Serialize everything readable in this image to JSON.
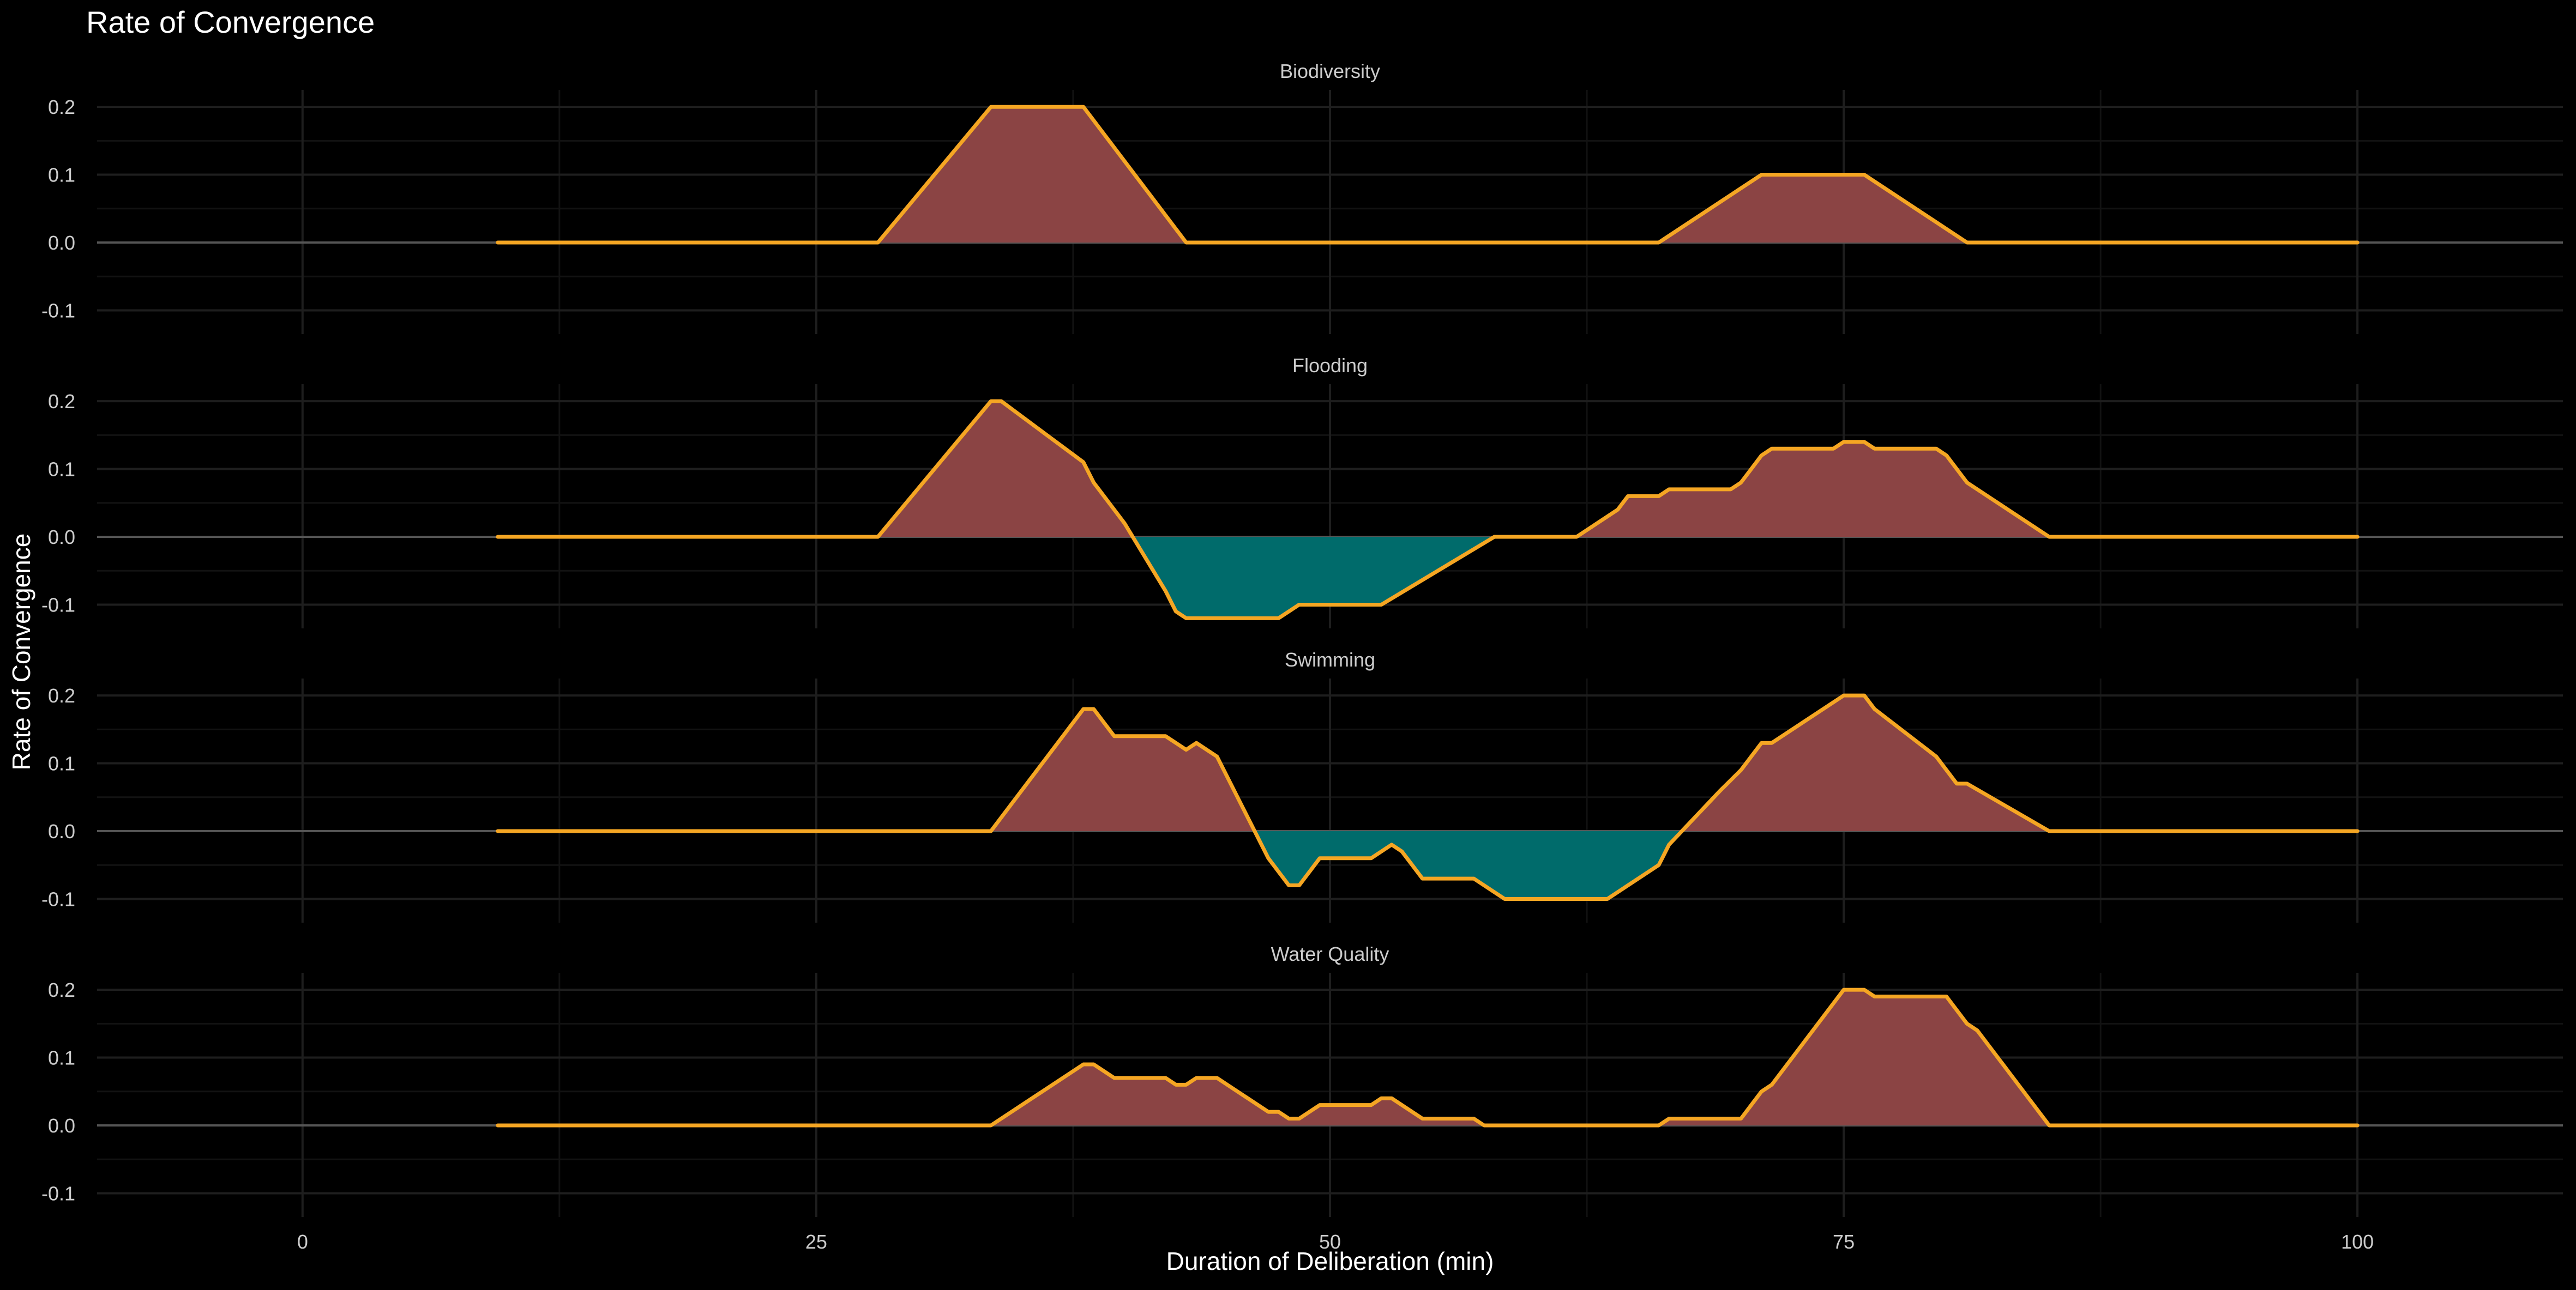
{
  "chart_data": {
    "type": "area",
    "title": "Rate of Convergence",
    "xlabel": "Duration of Deliberation (min)",
    "ylabel": "Rate of Convergence",
    "xlim": [
      -10,
      110
    ],
    "ylim": [
      -0.135,
      0.225
    ],
    "x_ticks": [
      0,
      25,
      50,
      75,
      100
    ],
    "y_ticks": [
      -0.1,
      0.0,
      0.1,
      0.2
    ],
    "grid": true,
    "legend": "none",
    "colors": {
      "background": "#000000",
      "line": "#F5A623",
      "positive_fill": "#8B4444",
      "negative_fill": "#006B6B",
      "grid_major": "#1E1E1E",
      "grid_minor": "#121212",
      "zero_line": "#555555",
      "text": "#CCCCCC",
      "title_text": "#FFFFFF"
    },
    "panels": [
      {
        "name": "Biodiversity",
        "points": [
          [
            9.5,
            0
          ],
          [
            28,
            0
          ],
          [
            33.5,
            0.2
          ],
          [
            38,
            0.2
          ],
          [
            43,
            0
          ],
          [
            66,
            0
          ],
          [
            71,
            0.1
          ],
          [
            76,
            0.1
          ],
          [
            81,
            0
          ],
          [
            100,
            0
          ]
        ]
      },
      {
        "name": "Flooding",
        "points": [
          [
            9.5,
            0
          ],
          [
            28,
            0
          ],
          [
            33.5,
            0.2
          ],
          [
            34,
            0.2
          ],
          [
            38,
            0.11
          ],
          [
            38.5,
            0.08
          ],
          [
            40,
            0.02
          ],
          [
            42,
            -0.08
          ],
          [
            42.5,
            -0.11
          ],
          [
            43,
            -0.12
          ],
          [
            47.5,
            -0.12
          ],
          [
            48.5,
            -0.1
          ],
          [
            52.5,
            -0.1
          ],
          [
            58,
            0
          ],
          [
            62,
            0
          ],
          [
            64,
            0.04
          ],
          [
            64.5,
            0.06
          ],
          [
            66,
            0.06
          ],
          [
            66.5,
            0.07
          ],
          [
            69.5,
            0.07
          ],
          [
            70,
            0.08
          ],
          [
            70.5,
            0.1
          ],
          [
            71,
            0.12
          ],
          [
            71.5,
            0.13
          ],
          [
            74.5,
            0.13
          ],
          [
            75,
            0.14
          ],
          [
            76,
            0.14
          ],
          [
            76.5,
            0.13
          ],
          [
            79.5,
            0.13
          ],
          [
            80,
            0.12
          ],
          [
            81,
            0.08
          ],
          [
            85,
            0
          ],
          [
            100,
            0
          ]
        ]
      },
      {
        "name": "Swimming",
        "points": [
          [
            9.5,
            0
          ],
          [
            33.5,
            0
          ],
          [
            38,
            0.18
          ],
          [
            38.5,
            0.18
          ],
          [
            39.5,
            0.14
          ],
          [
            42,
            0.14
          ],
          [
            43,
            0.12
          ],
          [
            43.5,
            0.13
          ],
          [
            44,
            0.12
          ],
          [
            44.5,
            0.11
          ],
          [
            47,
            -0.04
          ],
          [
            48,
            -0.08
          ],
          [
            48.5,
            -0.08
          ],
          [
            49.5,
            -0.04
          ],
          [
            52,
            -0.04
          ],
          [
            53,
            -0.02
          ],
          [
            53.5,
            -0.03
          ],
          [
            54.5,
            -0.07
          ],
          [
            57,
            -0.07
          ],
          [
            58.5,
            -0.1
          ],
          [
            63.5,
            -0.1
          ],
          [
            66,
            -0.05
          ],
          [
            66.5,
            -0.02
          ],
          [
            69,
            0.06
          ],
          [
            70,
            0.09
          ],
          [
            71,
            0.13
          ],
          [
            71.5,
            0.13
          ],
          [
            75,
            0.2
          ],
          [
            76,
            0.2
          ],
          [
            76.5,
            0.18
          ],
          [
            79.5,
            0.11
          ],
          [
            80.5,
            0.07
          ],
          [
            81,
            0.07
          ],
          [
            85,
            0
          ],
          [
            100,
            0
          ]
        ]
      },
      {
        "name": "Water Quality",
        "points": [
          [
            9.5,
            0
          ],
          [
            33.5,
            0
          ],
          [
            38,
            0.09
          ],
          [
            38.5,
            0.09
          ],
          [
            39.5,
            0.07
          ],
          [
            42,
            0.07
          ],
          [
            42.5,
            0.06
          ],
          [
            43,
            0.06
          ],
          [
            43.5,
            0.07
          ],
          [
            44.5,
            0.07
          ],
          [
            47,
            0.02
          ],
          [
            47.5,
            0.02
          ],
          [
            48,
            0.01
          ],
          [
            48.5,
            0.01
          ],
          [
            49.5,
            0.03
          ],
          [
            52,
            0.03
          ],
          [
            52.5,
            0.04
          ],
          [
            53,
            0.04
          ],
          [
            54.5,
            0.01
          ],
          [
            57,
            0.01
          ],
          [
            57.5,
            0
          ],
          [
            66,
            0
          ],
          [
            66.5,
            0.01
          ],
          [
            70,
            0.01
          ],
          [
            71,
            0.05
          ],
          [
            71.5,
            0.06
          ],
          [
            75,
            0.2
          ],
          [
            76,
            0.2
          ],
          [
            76.5,
            0.19
          ],
          [
            80,
            0.19
          ],
          [
            81,
            0.15
          ],
          [
            81.5,
            0.14
          ],
          [
            85,
            0
          ],
          [
            100,
            0
          ]
        ]
      }
    ]
  }
}
